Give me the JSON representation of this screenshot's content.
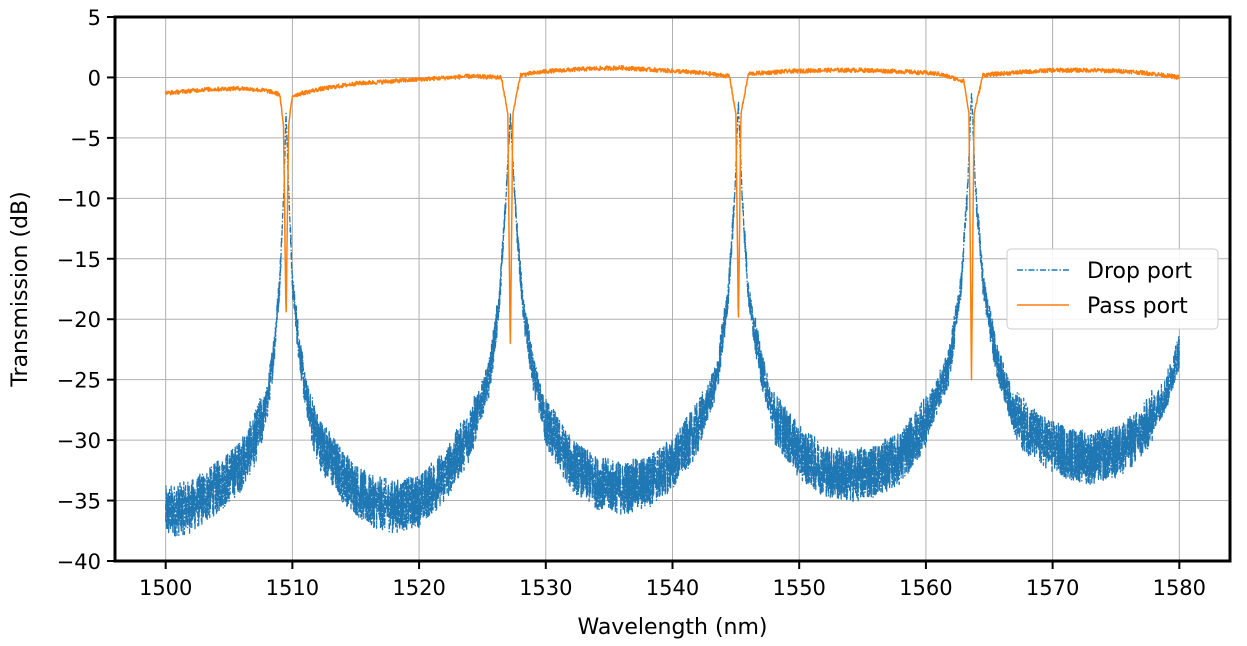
{
  "chart_data": {
    "type": "line",
    "xlabel": "Wavelength (nm)",
    "ylabel": "Transmission (dB)",
    "xlim": [
      1496,
      1584
    ],
    "ylim": [
      -40,
      5
    ],
    "xticks": [
      1500,
      1510,
      1520,
      1530,
      1540,
      1550,
      1560,
      1570,
      1580
    ],
    "xtick_labels": [
      "1500",
      "1510",
      "1520",
      "1530",
      "1540",
      "1550",
      "1560",
      "1570",
      "1580"
    ],
    "yticks": [
      5,
      0,
      -5,
      -10,
      -15,
      -20,
      -25,
      -30,
      -35,
      -40
    ],
    "ytick_labels": [
      "5",
      "0",
      "−5",
      "−10",
      "−15",
      "−20",
      "−25",
      "−30",
      "−35",
      "−40"
    ],
    "grid": true,
    "legend_position": "center-right",
    "resonances_nm": [
      1509.5,
      1527.2,
      1545.2,
      1563.6
    ],
    "series": [
      {
        "name": "Drop port",
        "color": "#1f77b4",
        "style": "dash-dot",
        "x": [
          1500,
          1502,
          1504,
          1506,
          1507,
          1508,
          1508.5,
          1509,
          1509.3,
          1509.5,
          1509.7,
          1510,
          1510.5,
          1511,
          1512,
          1514,
          1516,
          1518,
          1520,
          1522,
          1524,
          1525.5,
          1526.3,
          1526.8,
          1527.2,
          1527.6,
          1528.2,
          1529,
          1530,
          1532,
          1534,
          1536,
          1538,
          1540,
          1542,
          1543.5,
          1544.4,
          1544.9,
          1545.2,
          1545.5,
          1546,
          1547,
          1548,
          1550,
          1552,
          1554,
          1556,
          1558,
          1560,
          1561.8,
          1562.8,
          1563.3,
          1563.6,
          1563.9,
          1564.5,
          1565.5,
          1567,
          1569,
          1571,
          1573,
          1575,
          1577,
          1579,
          1580
        ],
        "y": [
          -36,
          -35.5,
          -34,
          -32,
          -30,
          -27,
          -23,
          -17,
          -10,
          -3,
          -9,
          -17,
          -22,
          -26,
          -30,
          -33,
          -35,
          -35.5,
          -35,
          -33,
          -29.5,
          -25,
          -19,
          -11,
          -3,
          -11,
          -19,
          -24.5,
          -28.5,
          -32,
          -33.5,
          -34,
          -33.5,
          -32,
          -29,
          -25,
          -18,
          -10,
          -2,
          -10,
          -18,
          -24,
          -28,
          -31,
          -32.5,
          -33,
          -32.5,
          -31.5,
          -28.5,
          -24,
          -17,
          -9,
          -1,
          -9,
          -17,
          -23,
          -28,
          -30,
          -31,
          -31.5,
          -31,
          -29.5,
          -26,
          -22.5
        ]
      },
      {
        "name": "Pass port",
        "color": "#ff7f0e",
        "style": "solid",
        "x": [
          1500,
          1503,
          1506,
          1508,
          1509,
          1509.3,
          1509.5,
          1509.7,
          1510,
          1512,
          1515,
          1518,
          1521,
          1524,
          1526.5,
          1527,
          1527.2,
          1527.4,
          1528,
          1530,
          1533,
          1536,
          1539,
          1542,
          1544.5,
          1545,
          1545.2,
          1545.4,
          1546,
          1549,
          1552,
          1555,
          1558,
          1561,
          1563,
          1563.4,
          1563.6,
          1563.8,
          1564.5,
          1567,
          1570,
          1573,
          1576,
          1578,
          1580
        ],
        "y": [
          -1.3,
          -1.0,
          -0.9,
          -1.1,
          -1.4,
          -4,
          -20.2,
          -4,
          -1.5,
          -1.0,
          -0.5,
          -0.3,
          -0.1,
          0.1,
          0.0,
          -3,
          -23,
          -3,
          0.2,
          0.5,
          0.7,
          0.8,
          0.6,
          0.4,
          0.1,
          -3,
          -20.7,
          -3,
          0.3,
          0.5,
          0.6,
          0.6,
          0.5,
          0.3,
          -0.3,
          -3,
          -25,
          -3,
          0.2,
          0.4,
          0.6,
          0.6,
          0.5,
          0.3,
          0.0
        ]
      }
    ]
  }
}
